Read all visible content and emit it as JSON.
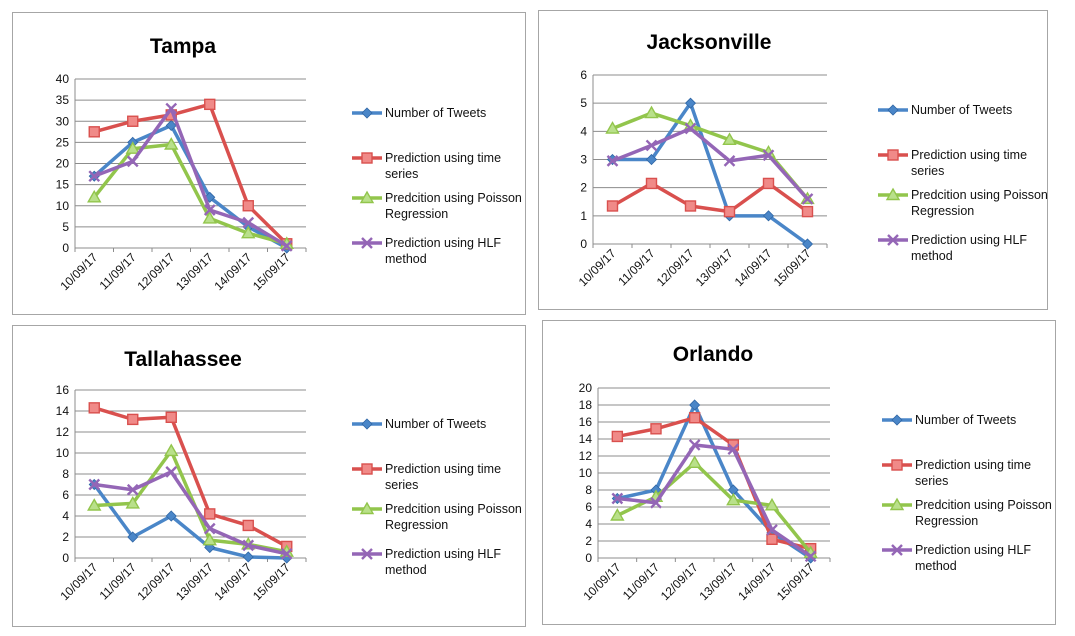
{
  "colors": {
    "series": [
      "#4a86c8",
      "#d9504e",
      "#92c54c",
      "#9466b6"
    ],
    "axis": "#8c8c8c",
    "grid": "#8c8c8c"
  },
  "legend_labels": [
    "Number of Tweets",
    "Prediction using time series",
    "Predcition using Poisson Regression",
    "Prediction using HLF method"
  ],
  "chart_data": [
    {
      "type": "line",
      "title": "Tampa",
      "categories": [
        "10/09/17",
        "11/09/17",
        "12/09/17",
        "13/09/17",
        "14/09/17",
        "15/09/17"
      ],
      "ylim": [
        0,
        40
      ],
      "ystep": 5,
      "grid": true,
      "legend": "right",
      "series": [
        {
          "name": "Number of Tweets",
          "marker": "diamond",
          "values": [
            17,
            25,
            29,
            12,
            5,
            0
          ]
        },
        {
          "name": "Prediction using time series",
          "marker": "square",
          "values": [
            27.5,
            30,
            31.5,
            34,
            10,
            1
          ]
        },
        {
          "name": "Predcition using Poisson Regression",
          "marker": "triangle",
          "values": [
            12,
            23.5,
            24.5,
            7,
            3.5,
            1
          ]
        },
        {
          "name": "Prediction using HLF method",
          "marker": "x",
          "values": [
            17,
            20.5,
            33,
            9,
            6,
            0.5
          ]
        }
      ]
    },
    {
      "type": "line",
      "title": "Jacksonville",
      "categories": [
        "10/09/17",
        "11/09/17",
        "12/09/17",
        "13/09/17",
        "14/09/17",
        "15/09/17"
      ],
      "ylim": [
        0,
        6
      ],
      "ystep": 1,
      "grid": true,
      "legend": "right",
      "series": [
        {
          "name": "Number of Tweets",
          "marker": "diamond",
          "values": [
            3,
            3,
            5,
            1,
            1,
            0
          ]
        },
        {
          "name": "Prediction using time series",
          "marker": "square",
          "values": [
            1.35,
            2.15,
            1.35,
            1.15,
            2.15,
            1.15
          ]
        },
        {
          "name": "Predcition using Poisson Regression",
          "marker": "triangle",
          "values": [
            4.1,
            4.65,
            4.2,
            3.7,
            3.25,
            1.6
          ]
        },
        {
          "name": "Prediction using HLF method",
          "marker": "x",
          "values": [
            2.95,
            3.5,
            4.1,
            2.95,
            3.15,
            1.6
          ]
        }
      ]
    },
    {
      "type": "line",
      "title": "Tallahassee",
      "categories": [
        "10/09/17",
        "11/09/17",
        "12/09/17",
        "13/09/17",
        "14/09/17",
        "15/09/17"
      ],
      "ylim": [
        0,
        16
      ],
      "ystep": 2,
      "grid": true,
      "legend": "right",
      "series": [
        {
          "name": "Number of Tweets",
          "marker": "diamond",
          "values": [
            7,
            2,
            4,
            1,
            0.1,
            0
          ]
        },
        {
          "name": "Prediction using time series",
          "marker": "square",
          "values": [
            14.3,
            13.2,
            13.4,
            4.2,
            3.1,
            1.1
          ]
        },
        {
          "name": "Predcition using Poisson Regression",
          "marker": "triangle",
          "values": [
            5,
            5.2,
            10.2,
            1.7,
            1.3,
            0.6
          ]
        },
        {
          "name": "Prediction using HLF method",
          "marker": "x",
          "values": [
            7,
            6.5,
            8.2,
            2.8,
            1.2,
            0.4
          ]
        }
      ]
    },
    {
      "type": "line",
      "title": "Orlando",
      "categories": [
        "10/09/17",
        "11/09/17",
        "12/09/17",
        "13/09/17",
        "14/09/17",
        "15/09/17"
      ],
      "ylim": [
        0,
        20
      ],
      "ystep": 2,
      "grid": true,
      "legend": "right",
      "series": [
        {
          "name": "Number of Tweets",
          "marker": "diamond",
          "values": [
            7,
            8,
            18,
            8,
            3,
            0
          ]
        },
        {
          "name": "Prediction using time series",
          "marker": "square",
          "values": [
            14.3,
            15.2,
            16.5,
            13.3,
            2.2,
            1.1
          ]
        },
        {
          "name": "Predcition using Poisson Regression",
          "marker": "triangle",
          "values": [
            5,
            7.2,
            11.2,
            6.8,
            6.2,
            0.6
          ]
        },
        {
          "name": "Prediction using HLF method",
          "marker": "x",
          "values": [
            7,
            6.5,
            13.3,
            12.8,
            3.3,
            0.2
          ]
        }
      ]
    }
  ]
}
